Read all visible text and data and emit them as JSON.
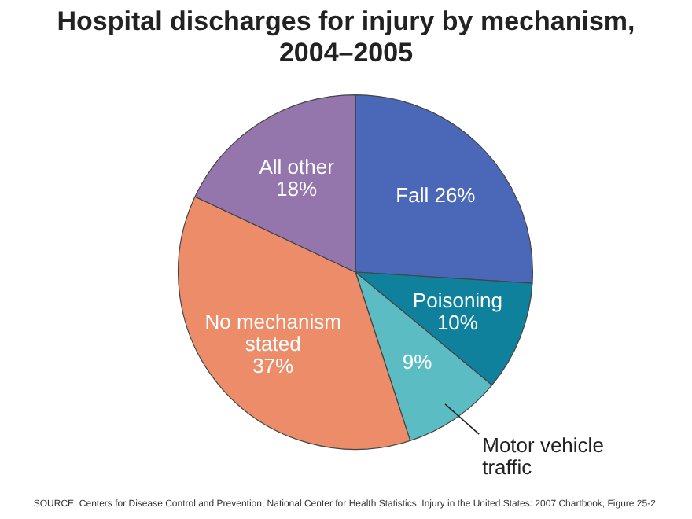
{
  "chart_data": {
    "type": "pie",
    "title": "Hospital discharges for injury by mechanism, 2004–2005",
    "categories": [
      "Fall",
      "Poisoning",
      "Motor vehicle traffic",
      "No mechanism stated",
      "All other"
    ],
    "values": [
      26,
      10,
      9,
      37,
      18
    ],
    "value_labels": [
      "26%",
      "10%",
      "9%",
      "37%",
      "18%"
    ],
    "colors": [
      "#4a67b8",
      "#0f819d",
      "#5bbdc3",
      "#ec8c68",
      "#9576ac"
    ],
    "legend": false,
    "annotations": [
      "SOURCE: Centers for Disease Control and Prevention, National Center for Health Statistics, Injury in the United States: 2007 Chartbook, Figure 25-2."
    ]
  }
}
